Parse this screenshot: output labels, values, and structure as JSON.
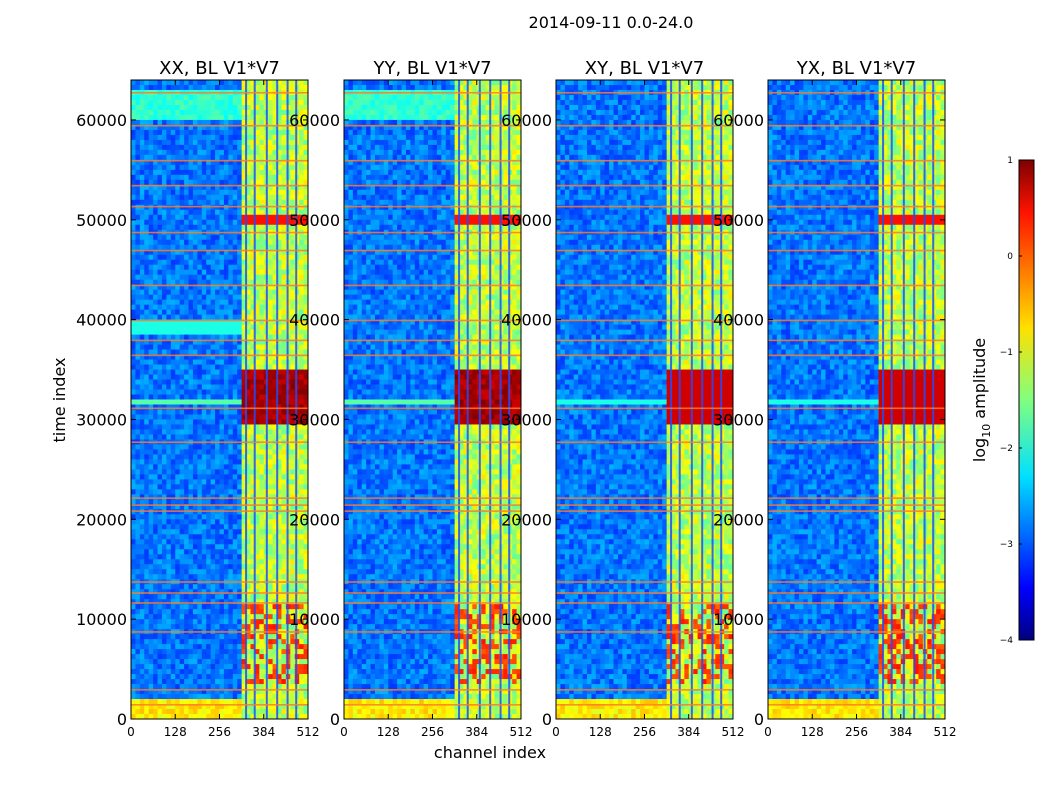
{
  "chart_data": {
    "type": "heatmap",
    "suptitle": "2014-09-11 0.0-24.0",
    "xlabel": "channel index",
    "ylabel": "time index",
    "xlim": [
      0,
      512
    ],
    "ylim": [
      0,
      64000
    ],
    "xticks": [
      0,
      128,
      256,
      384,
      512
    ],
    "xtick_labels": [
      "0",
      "128",
      "256",
      "384",
      "512"
    ],
    "yticks": [
      0,
      10000,
      20000,
      30000,
      40000,
      50000,
      60000
    ],
    "ytick_labels": [
      "0",
      "10000",
      "20000",
      "30000",
      "40000",
      "50000",
      "60000"
    ],
    "panels": [
      {
        "title": "XX, BL V1*V7",
        "variant": "XX"
      },
      {
        "title": "YY, BL V1*V7",
        "variant": "YY"
      },
      {
        "title": "XY, BL V1*V7",
        "variant": "XY"
      },
      {
        "title": "YX, BL V1*V7",
        "variant": "YX"
      }
    ],
    "colorbar": {
      "label": "log10 amplitude",
      "label_main": "log",
      "label_sub": "10",
      "label_rest": " amplitude",
      "range": [
        -4,
        1
      ],
      "ticks": [
        1,
        0,
        -1,
        -2,
        -3,
        -4
      ],
      "tick_labels": [
        "1",
        "0",
        "−1",
        "−2",
        "−3",
        "−4"
      ],
      "colormap": "jet"
    },
    "features": {
      "band_channels": [
        320,
        512
      ],
      "band_base_value": -1.2,
      "rfi_channel_lines": [
        330,
        355,
        390,
        420,
        450,
        475
      ],
      "hot_time_range": [
        29500,
        35000
      ],
      "hot_value": 0.6,
      "background_value": -2.8,
      "flagged_time_rows": [
        1500,
        3000,
        8800,
        11700,
        12700,
        13800,
        20900,
        21500,
        22200,
        27800,
        31200,
        36500,
        38000,
        40000,
        43500,
        47000,
        48800,
        51400,
        53500,
        56000,
        59500,
        62800
      ]
    }
  }
}
